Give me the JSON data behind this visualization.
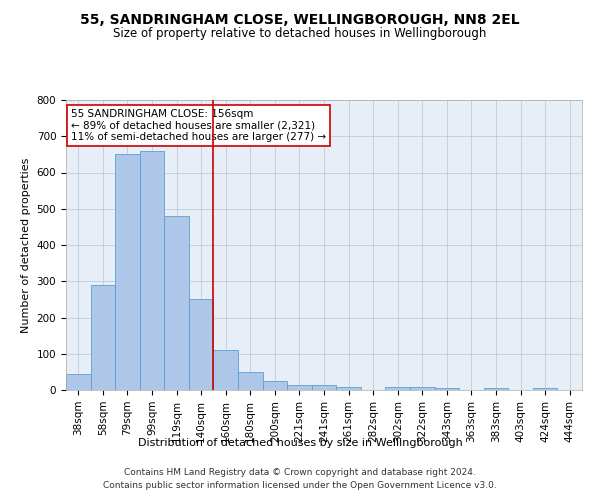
{
  "title1": "55, SANDRINGHAM CLOSE, WELLINGBOROUGH, NN8 2EL",
  "title2": "Size of property relative to detached houses in Wellingborough",
  "xlabel": "Distribution of detached houses by size in Wellingborough",
  "ylabel": "Number of detached properties",
  "categories": [
    "38sqm",
    "58sqm",
    "79sqm",
    "99sqm",
    "119sqm",
    "140sqm",
    "160sqm",
    "180sqm",
    "200sqm",
    "221sqm",
    "241sqm",
    "261sqm",
    "282sqm",
    "302sqm",
    "322sqm",
    "343sqm",
    "363sqm",
    "383sqm",
    "403sqm",
    "424sqm",
    "444sqm"
  ],
  "values": [
    45,
    290,
    650,
    660,
    480,
    250,
    110,
    50,
    25,
    14,
    14,
    8,
    0,
    8,
    8,
    5,
    0,
    5,
    0,
    5,
    0
  ],
  "bar_color": "#aec6e8",
  "bar_edge_color": "#5a9fd4",
  "vline_x": 5.5,
  "vline_color": "#cc0000",
  "annotation_line1": "55 SANDRINGHAM CLOSE: 156sqm",
  "annotation_line2": "← 89% of detached houses are smaller (2,321)",
  "annotation_line3": "11% of semi-detached houses are larger (277) →",
  "annotation_box_color": "#ffffff",
  "annotation_box_edge": "#cc0000",
  "ylim": [
    0,
    800
  ],
  "yticks": [
    0,
    100,
    200,
    300,
    400,
    500,
    600,
    700,
    800
  ],
  "background_color": "#e8eef8",
  "footer1": "Contains HM Land Registry data © Crown copyright and database right 2024.",
  "footer2": "Contains public sector information licensed under the Open Government Licence v3.0.",
  "title1_fontsize": 10,
  "title2_fontsize": 8.5,
  "xlabel_fontsize": 8,
  "ylabel_fontsize": 8,
  "tick_fontsize": 7.5,
  "annotation_fontsize": 7.5,
  "footer_fontsize": 6.5
}
